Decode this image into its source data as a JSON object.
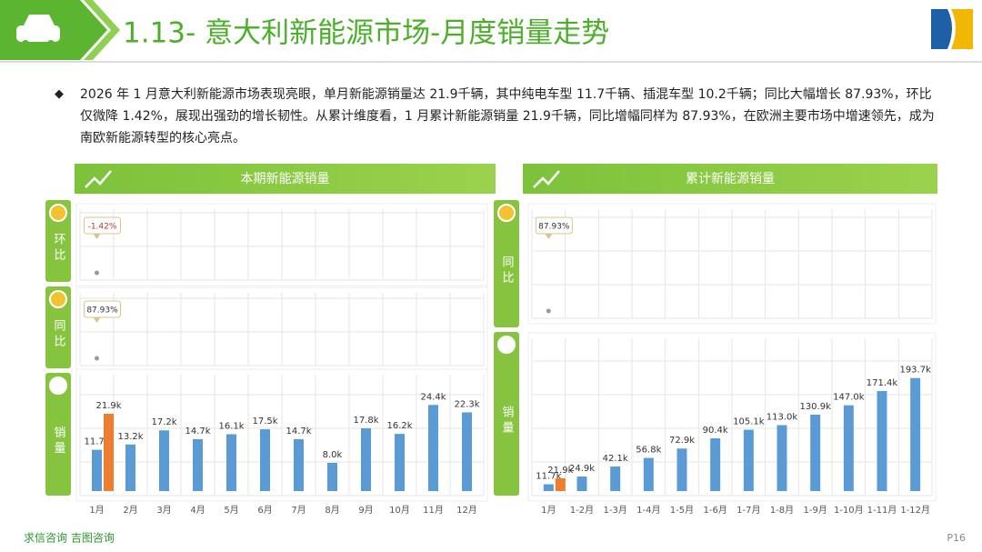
{
  "header": {
    "title": "1.13- 意大利新能源市场-月度销量走势"
  },
  "summary": "2026 年 1 月意大利新能源市场表现亮眼，单月新能源销量达 21.9千辆，其中纯电车型 11.7千辆、插混车型 10.2千辆；同比大幅增长 87.93%，环比仅微降 1.42%，展现出强劲的增长韧性。从累计维度看，1 月累计新能源销量 21.9千辆，同比增幅同样为 87.93%，在欧洲主要市场中增速领先，成为南欧新能源转型的核心亮点。",
  "panels": [
    {
      "title": "本期新能源销量",
      "labels": [
        "环比",
        "同比",
        "销量"
      ]
    },
    {
      "title": "累计新能源销量",
      "labels": [
        "同比",
        "销量"
      ]
    }
  ],
  "chart_data": [
    {
      "type": "marker",
      "values": [
        -1.42
      ],
      "value_labels": [
        "-1.42%"
      ],
      "color": "#c0392b"
    },
    {
      "type": "marker",
      "values": [
        87.93
      ],
      "value_labels": [
        "87.93%"
      ],
      "color": "#333333"
    },
    {
      "type": "bar",
      "categories": [
        "1月",
        "2月",
        "3月",
        "4月",
        "5月",
        "6月",
        "7月",
        "8月",
        "9月",
        "10月",
        "11月",
        "12月"
      ],
      "series": [
        {
          "color": "#5b9bd5",
          "values": [
            11.7,
            13.2,
            17.2,
            14.7,
            16.1,
            17.5,
            14.7,
            8.0,
            17.8,
            16.2,
            24.4,
            22.3
          ],
          "value_labels": [
            "11.7k",
            "13.2k",
            "17.2k",
            "14.7k",
            "16.1k",
            "17.5k",
            "14.7k",
            "8.0k",
            "17.8k",
            "16.2k",
            "24.4k",
            "22.3k"
          ]
        },
        {
          "color": "#ed7d31",
          "values": [
            21.9,
            null,
            null,
            null,
            null,
            null,
            null,
            null,
            null,
            null,
            null,
            null
          ],
          "value_labels": [
            "21.9k",
            null,
            null,
            null,
            null,
            null,
            null,
            null,
            null,
            null,
            null,
            null
          ]
        }
      ]
    },
    {
      "type": "marker",
      "values": [
        87.93
      ],
      "value_labels": [
        "87.93%"
      ],
      "color": "#333333"
    },
    {
      "type": "bar",
      "categories": [
        "1月",
        "1-2月",
        "1-3月",
        "1-4月",
        "1-5月",
        "1-6月",
        "1-7月",
        "1-8月",
        "1-9月",
        "1-10月",
        "1-11月",
        "1-12月"
      ],
      "series": [
        {
          "color": "#5b9bd5",
          "values": [
            11.7,
            24.9,
            42.1,
            56.8,
            72.9,
            90.4,
            105.1,
            113.0,
            130.9,
            147.0,
            171.4,
            193.7
          ],
          "value_labels": [
            "11.7k",
            "24.9k",
            "42.1k",
            "56.8k",
            "72.9k",
            "90.4k",
            "105.1k",
            "113.0k",
            "130.9k",
            "147.0k",
            "171.4k",
            "193.7k"
          ]
        },
        {
          "color": "#ed7d31",
          "values": [
            21.9,
            null,
            null,
            null,
            null,
            null,
            null,
            null,
            null,
            null,
            null,
            null
          ],
          "value_labels": [
            "21.9k",
            null,
            null,
            null,
            null,
            null,
            null,
            null,
            null,
            null,
            null,
            null
          ]
        }
      ]
    }
  ],
  "footer": {
    "source": "求信咨询 吉图咨询",
    "page": "P16"
  }
}
